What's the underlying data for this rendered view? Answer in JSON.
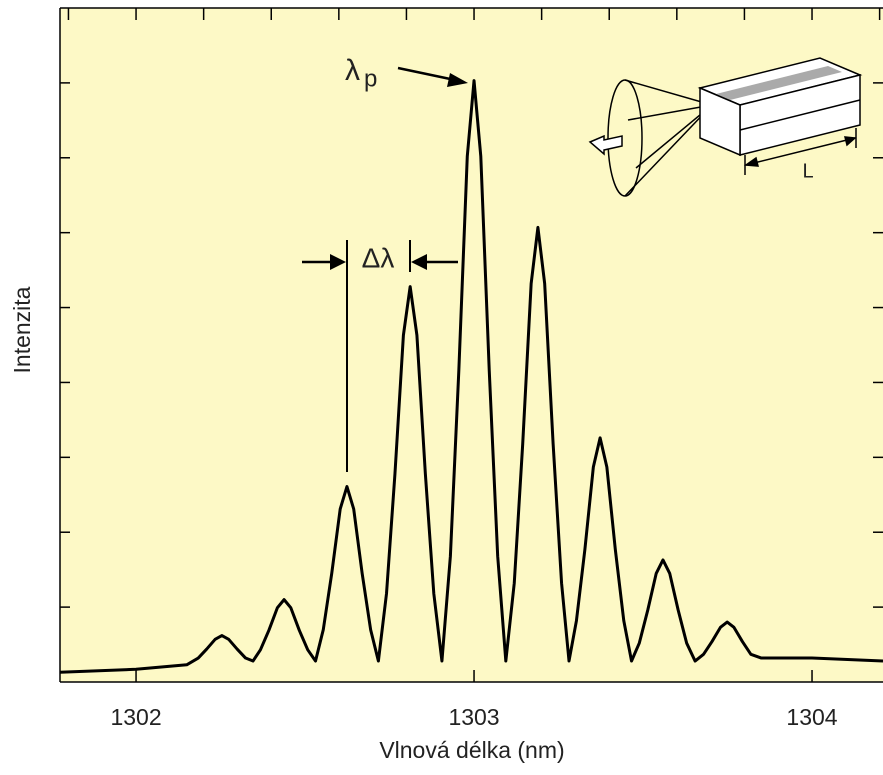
{
  "chart_data": {
    "type": "line",
    "x_label": "Vlnová délka (nm)",
    "y_label": "Intenzita",
    "annotations": {
      "peak_symbol": "λ",
      "peak_subscript": "p",
      "spacing": "Δλ",
      "length": "L"
    },
    "xlim": [
      1301.775,
      1304.21
    ],
    "ylim": [
      0,
      9
    ],
    "xticks": [
      1302,
      1303,
      1304
    ],
    "xminorticks": [
      1301.8,
      1302,
      1302.2,
      1302.4,
      1302.6,
      1302.8,
      1303,
      1303.2,
      1303.4,
      1303.6,
      1303.8,
      1304,
      1304.2
    ],
    "yticks": [
      1,
      2,
      3,
      4,
      5,
      6,
      7,
      8
    ],
    "background": "#fdf9c6",
    "series": [
      {
        "color": "#000000",
        "x": [
          1301.775,
          1302.0,
          1302.15,
          1302.184,
          1302.209,
          1302.234,
          1302.254,
          1302.274,
          1302.299,
          1302.324,
          1302.346,
          1302.368,
          1302.393,
          1302.418,
          1302.438,
          1302.458,
          1302.483,
          1302.508,
          1302.531,
          1302.554,
          1302.579,
          1302.604,
          1302.624,
          1302.644,
          1302.669,
          1302.694,
          1302.717,
          1302.741,
          1302.766,
          1302.791,
          1302.811,
          1302.831,
          1302.856,
          1302.881,
          1302.905,
          1302.93,
          1302.955,
          1302.98,
          1303.0,
          1303.02,
          1303.045,
          1303.07,
          1303.094,
          1303.119,
          1303.144,
          1303.169,
          1303.189,
          1303.209,
          1303.234,
          1303.259,
          1303.281,
          1303.303,
          1303.328,
          1303.353,
          1303.373,
          1303.393,
          1303.418,
          1303.443,
          1303.466,
          1303.489,
          1303.514,
          1303.539,
          1303.559,
          1303.579,
          1303.604,
          1303.629,
          1303.654,
          1303.679,
          1303.704,
          1303.729,
          1303.749,
          1303.769,
          1303.794,
          1303.819,
          1303.85,
          1304.0,
          1304.21
        ],
        "values": [
          0.13,
          0.17,
          0.23,
          0.32,
          0.44,
          0.57,
          0.62,
          0.57,
          0.44,
          0.32,
          0.28,
          0.43,
          0.69,
          0.99,
          1.1,
          0.99,
          0.69,
          0.43,
          0.28,
          0.7,
          1.45,
          2.31,
          2.61,
          2.31,
          1.45,
          0.7,
          0.28,
          1.18,
          2.78,
          4.63,
          5.28,
          4.63,
          2.78,
          1.18,
          0.28,
          1.68,
          4.16,
          7.02,
          8.03,
          7.02,
          4.16,
          1.68,
          0.28,
          1.32,
          3.18,
          5.32,
          6.07,
          5.32,
          3.18,
          1.32,
          0.28,
          0.82,
          1.77,
          2.87,
          3.26,
          2.87,
          1.77,
          0.82,
          0.28,
          0.52,
          0.96,
          1.45,
          1.63,
          1.45,
          0.96,
          0.52,
          0.28,
          0.37,
          0.54,
          0.73,
          0.8,
          0.73,
          0.54,
          0.37,
          0.32,
          0.32,
          0.28
        ]
      }
    ]
  }
}
